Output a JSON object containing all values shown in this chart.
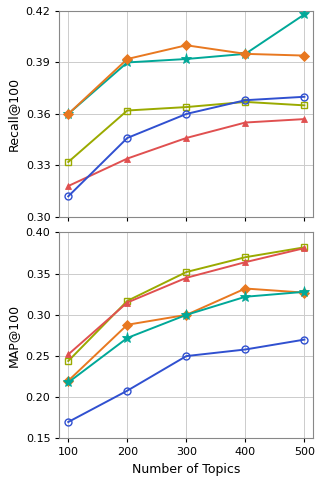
{
  "x": [
    100,
    200,
    300,
    400,
    500
  ],
  "recall": {
    "teal": [
      0.36,
      0.39,
      0.392,
      0.395,
      0.418
    ],
    "orange": [
      0.36,
      0.392,
      0.4,
      0.395,
      0.394
    ],
    "olive": [
      0.332,
      0.362,
      0.364,
      0.367,
      0.365
    ],
    "red": [
      0.318,
      0.334,
      0.346,
      0.355,
      0.357
    ],
    "blue": [
      0.312,
      0.346,
      0.36,
      0.368,
      0.37
    ]
  },
  "map": {
    "olive": [
      0.244,
      0.317,
      0.352,
      0.37,
      0.382
    ],
    "red": [
      0.252,
      0.315,
      0.345,
      0.364,
      0.381
    ],
    "orange": [
      0.22,
      0.288,
      0.3,
      0.332,
      0.327
    ],
    "teal": [
      0.218,
      0.272,
      0.3,
      0.322,
      0.328
    ],
    "blue": [
      0.17,
      0.208,
      0.25,
      0.258,
      0.27
    ]
  },
  "colors": {
    "teal": "#00a898",
    "orange": "#e87820",
    "olive": "#9aaa00",
    "red": "#e05050",
    "blue": "#3050d0"
  },
  "markers": {
    "teal": "*",
    "orange": "D",
    "olive": "s",
    "red": "^",
    "blue": "o"
  },
  "open_markers": [
    "blue",
    "olive"
  ],
  "recall_ylim": [
    0.3,
    0.42
  ],
  "map_ylim": [
    0.15,
    0.4
  ],
  "recall_yticks": [
    0.3,
    0.33,
    0.36,
    0.39,
    0.42
  ],
  "map_yticks": [
    0.15,
    0.2,
    0.25,
    0.3,
    0.35,
    0.4
  ],
  "xlabel": "Number of Topics",
  "ylabel_top": "Recall@100",
  "ylabel_bottom": "MAP@100",
  "grid_color": "#cccccc",
  "bg_color": "#ffffff"
}
